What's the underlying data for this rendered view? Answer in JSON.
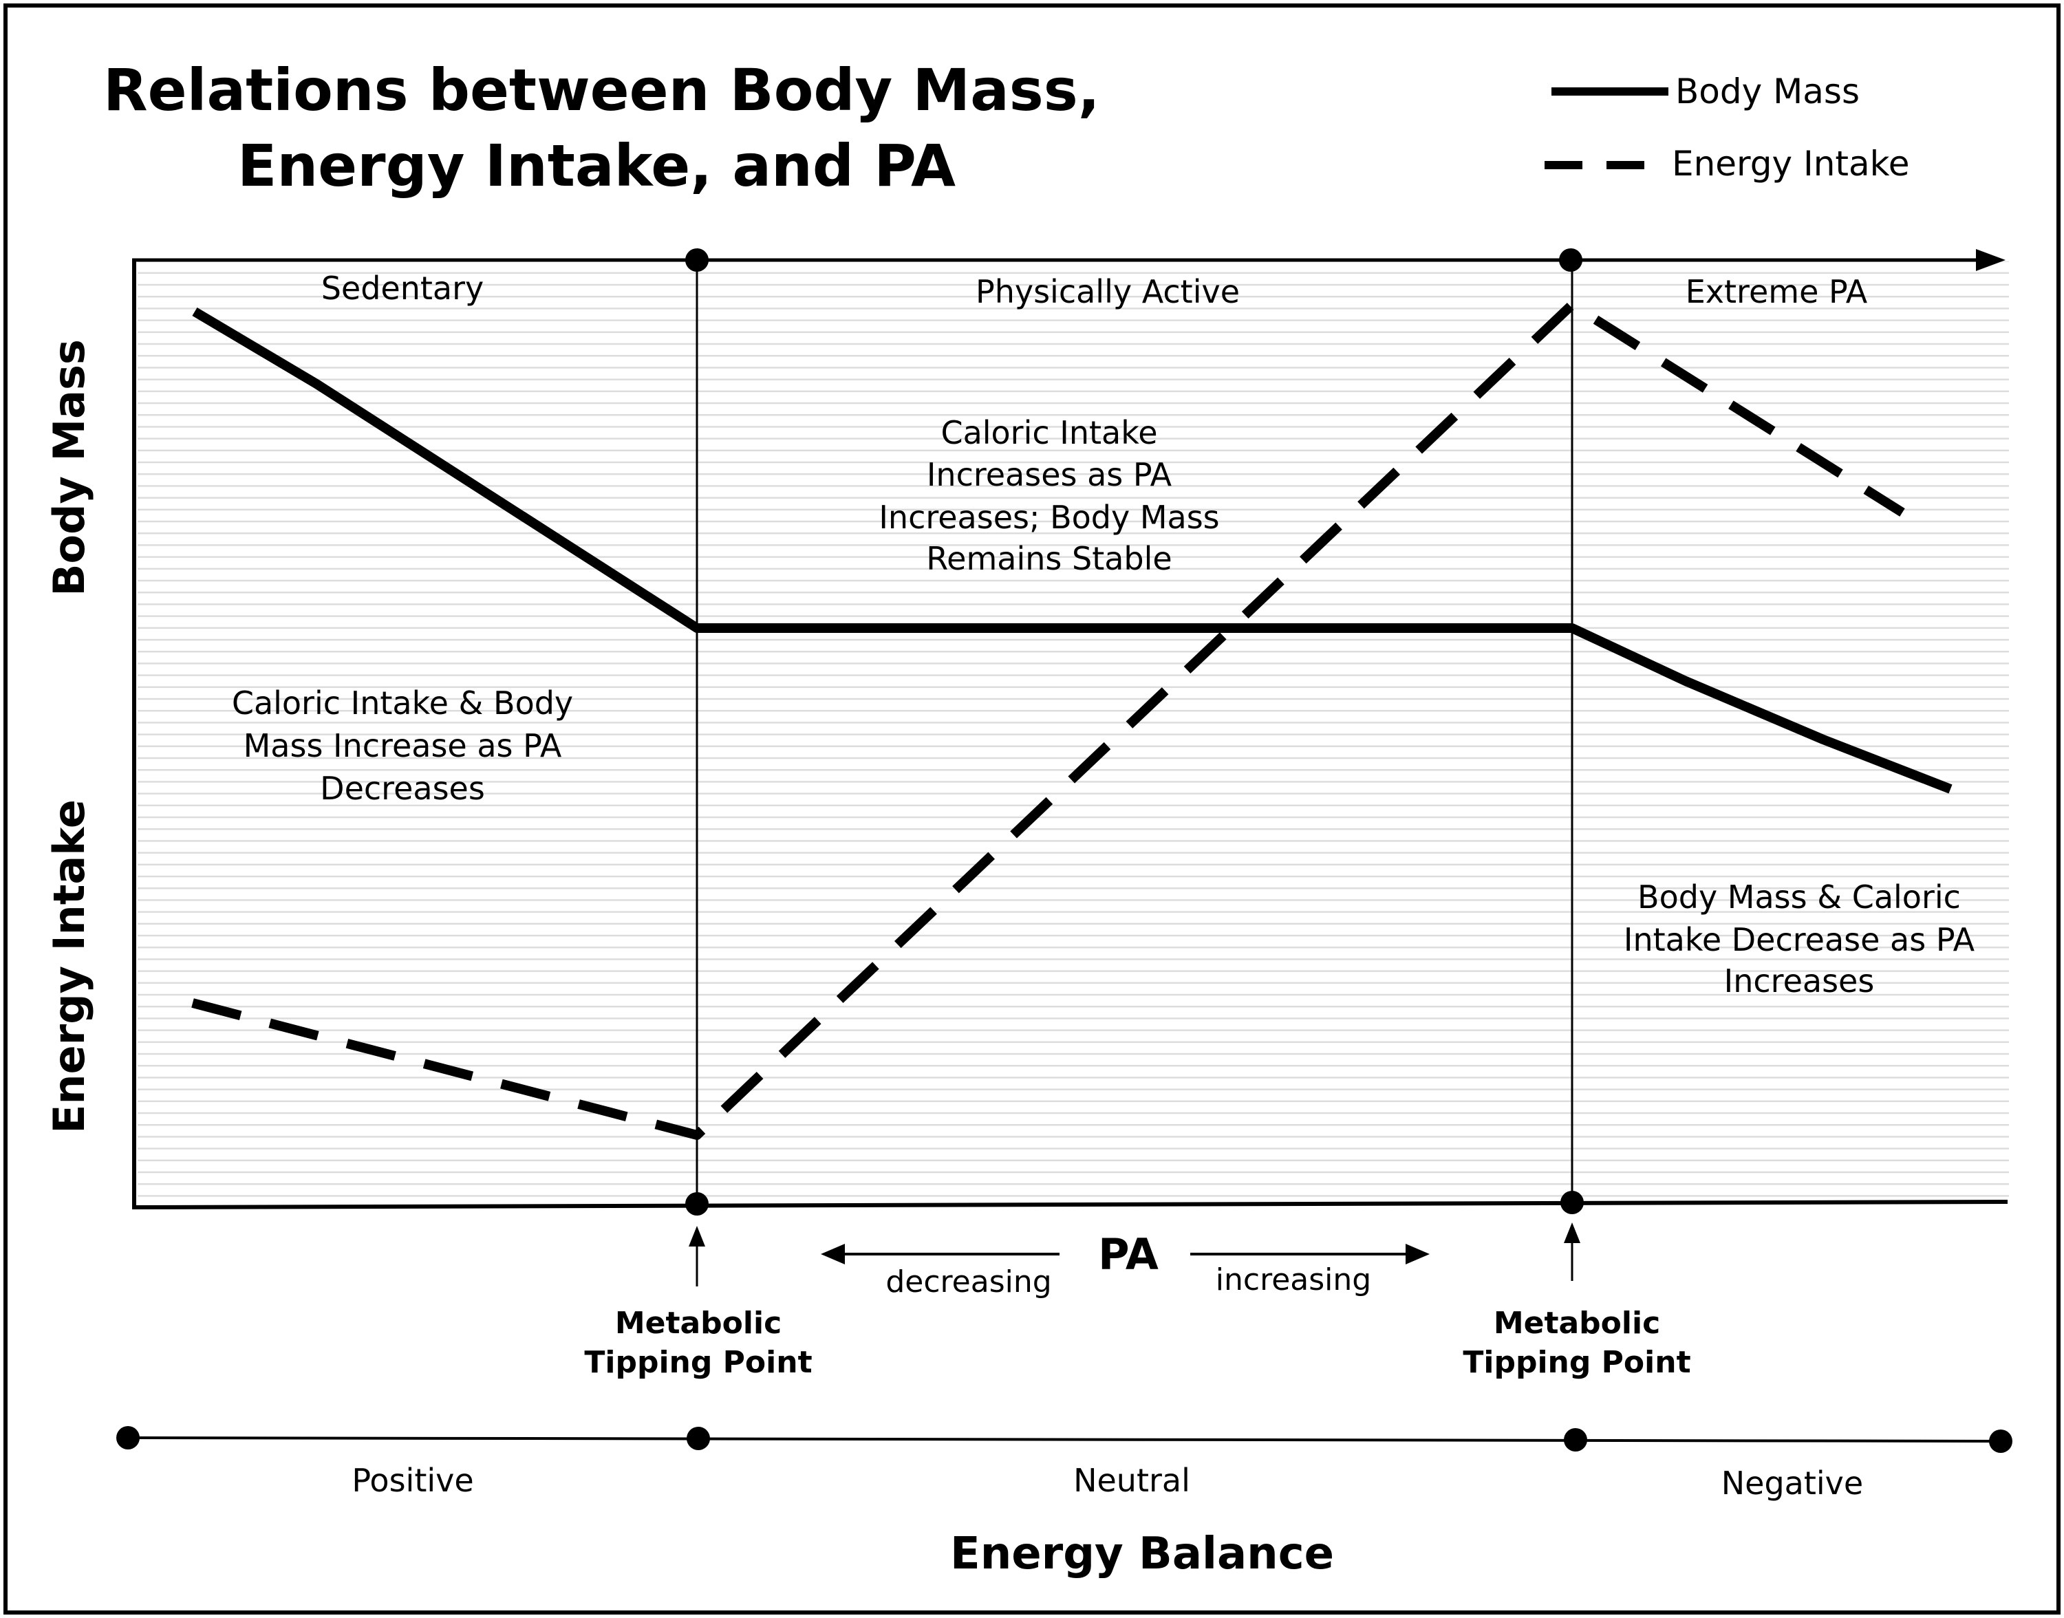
{
  "title": {
    "line1": "Relations between Body Mass,",
    "line2": "Energy Intake, and PA"
  },
  "legend": {
    "body_mass": "Body Mass",
    "energy_intake": "Energy Intake"
  },
  "y_axis": {
    "upper": "Body Mass",
    "lower": "Energy Intake"
  },
  "zones": {
    "sedentary": "Sedentary",
    "active": "Physically Active",
    "extreme": "Extreme PA"
  },
  "annotations": {
    "sedentary": [
      "Caloric Intake & Body",
      "Mass Increase as PA",
      "Decreases"
    ],
    "active": [
      "Caloric Intake",
      "Increases as PA",
      "Increases; Body Mass",
      "Remains Stable"
    ],
    "extreme": [
      "Body Mass & Caloric",
      "Intake Decrease as PA",
      "Increases"
    ]
  },
  "pa_axis": {
    "label": "PA",
    "decreasing": "decreasing",
    "increasing": "increasing"
  },
  "tipping_points": {
    "left": {
      "line1": "Metabolic",
      "line2": "Tipping Point"
    },
    "right": {
      "line1": "Metabolic",
      "line2": "Tipping Point"
    }
  },
  "energy_balance": {
    "title": "Energy Balance",
    "positive": "Positive",
    "neutral": "Neutral",
    "negative": "Negative"
  }
}
